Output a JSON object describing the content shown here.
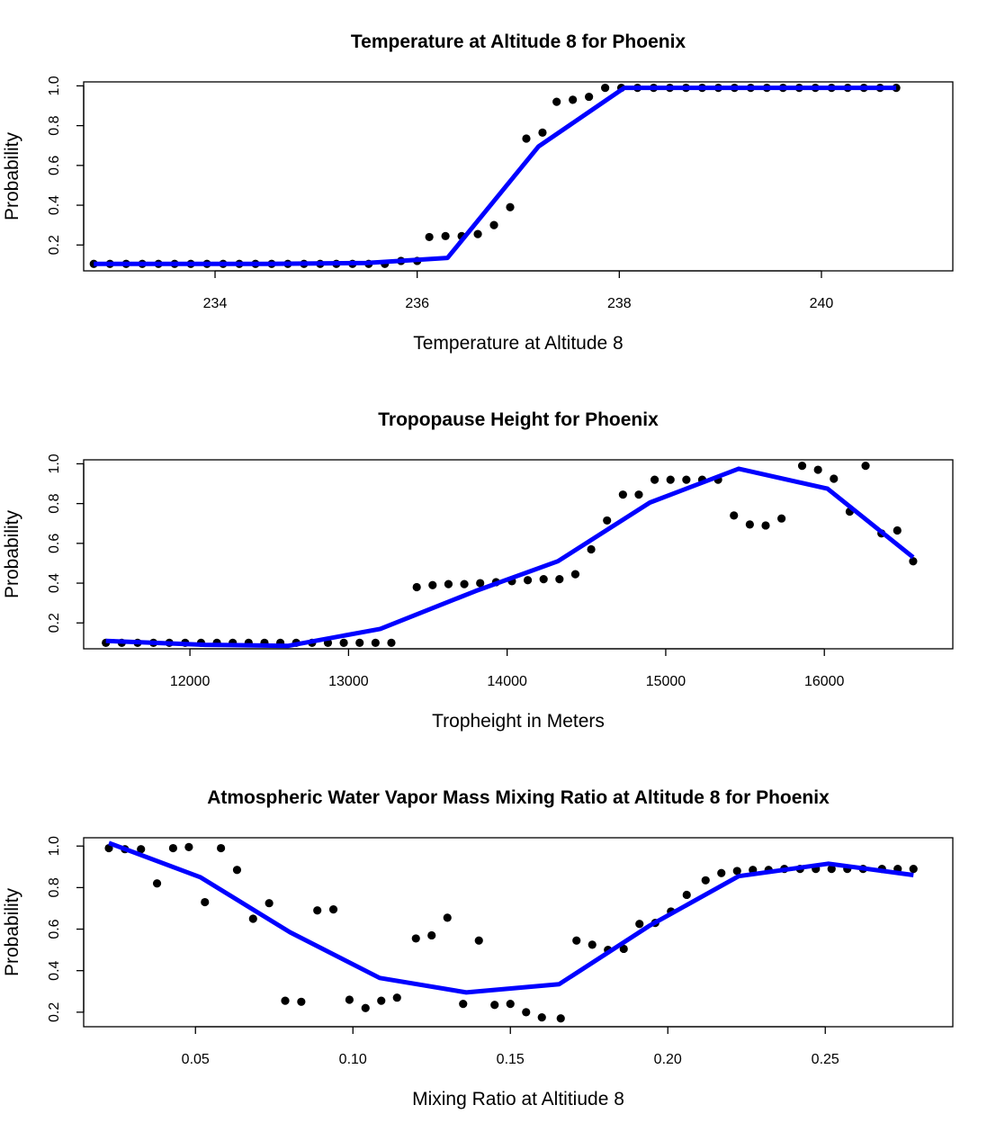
{
  "chart_data": [
    {
      "type": "scatter",
      "title": "Temperature at Altitude 8 for Phoenix",
      "xlabel": "Temperature at Altitude 8",
      "ylabel": "Probability",
      "xlim": [
        232.7,
        241.3
      ],
      "ylim": [
        0.07,
        1.02
      ],
      "xticks": [
        234,
        236,
        238,
        240
      ],
      "xtick_labels": [
        "234",
        "236",
        "238",
        "240"
      ],
      "yticks": [
        0.2,
        0.4,
        0.6,
        0.8,
        1.0
      ],
      "ytick_labels": [
        "0.2",
        "0.4",
        "0.6",
        "0.8",
        "1.0"
      ],
      "line_color": "#0000ff",
      "point_color": "#000000",
      "points": {
        "x": [
          232.8,
          232.96,
          233.12,
          233.28,
          233.44,
          233.6,
          233.76,
          233.92,
          234.08,
          234.24,
          234.4,
          234.56,
          234.72,
          234.88,
          235.04,
          235.2,
          235.36,
          235.52,
          235.68,
          235.84,
          236.0,
          236.12,
          236.28,
          236.44,
          236.6,
          236.76,
          236.92,
          237.08,
          237.24,
          237.38,
          237.54,
          237.7,
          237.86,
          238.02,
          238.18,
          238.34,
          238.5,
          238.66,
          238.82,
          238.98,
          239.14,
          239.3,
          239.46,
          239.62,
          239.78,
          239.94,
          240.1,
          240.26,
          240.42,
          240.58,
          240.74
        ],
        "y": [
          0.105,
          0.105,
          0.105,
          0.105,
          0.105,
          0.105,
          0.105,
          0.105,
          0.105,
          0.105,
          0.105,
          0.105,
          0.105,
          0.105,
          0.105,
          0.105,
          0.105,
          0.105,
          0.105,
          0.12,
          0.12,
          0.24,
          0.245,
          0.245,
          0.255,
          0.3,
          0.39,
          0.735,
          0.765,
          0.92,
          0.93,
          0.945,
          0.99,
          0.99,
          0.99,
          0.99,
          0.99,
          0.99,
          0.99,
          0.99,
          0.99,
          0.99,
          0.99,
          0.99,
          0.99,
          0.99,
          0.99,
          0.99,
          0.99,
          0.99,
          0.99
        ]
      },
      "line": {
        "x": [
          232.8,
          233.5,
          234.5,
          235.5,
          236.3,
          237.2,
          238.05,
          239.0,
          240.0,
          240.74
        ],
        "y": [
          0.105,
          0.105,
          0.105,
          0.11,
          0.135,
          0.695,
          0.99,
          0.99,
          0.99,
          0.99
        ]
      }
    },
    {
      "type": "scatter",
      "title": "Tropopause Height for Phoenix",
      "xlabel": "Tropheight in Meters",
      "ylabel": "Probability",
      "xlim": [
        11330,
        16810
      ],
      "ylim": [
        0.07,
        1.02
      ],
      "xticks": [
        12000,
        13000,
        14000,
        15000,
        16000
      ],
      "xtick_labels": [
        "12000",
        "13000",
        "14000",
        "15000",
        "16000"
      ],
      "yticks": [
        0.2,
        0.4,
        0.6,
        0.8,
        1.0
      ],
      "ytick_labels": [
        "0.2",
        "0.4",
        "0.6",
        "0.8",
        "1.0"
      ],
      "line_color": "#0000ff",
      "point_color": "#000000",
      "points": {
        "x": [
          11470,
          11570,
          11670,
          11770,
          11870,
          11970,
          12070,
          12170,
          12270,
          12370,
          12470,
          12570,
          12670,
          12770,
          12870,
          12970,
          13070,
          13170,
          13270,
          13430,
          13530,
          13630,
          13730,
          13830,
          13930,
          14030,
          14130,
          14230,
          14330,
          14430,
          14530,
          14630,
          14730,
          14830,
          14930,
          15030,
          15130,
          15230,
          15330,
          15430,
          15530,
          15630,
          15730,
          15860,
          15960,
          16060,
          16160,
          16260,
          16360,
          16460,
          16560
        ],
        "y": [
          0.1,
          0.1,
          0.1,
          0.1,
          0.1,
          0.1,
          0.1,
          0.1,
          0.1,
          0.1,
          0.1,
          0.1,
          0.1,
          0.1,
          0.1,
          0.1,
          0.1,
          0.1,
          0.1,
          0.38,
          0.39,
          0.395,
          0.395,
          0.4,
          0.405,
          0.41,
          0.415,
          0.42,
          0.42,
          0.445,
          0.57,
          0.715,
          0.845,
          0.845,
          0.92,
          0.92,
          0.92,
          0.92,
          0.92,
          0.74,
          0.695,
          0.69,
          0.725,
          0.99,
          0.97,
          0.925,
          0.76,
          0.99,
          0.65,
          0.665,
          0.51
        ]
      },
      "line": {
        "x": [
          11470,
          12100,
          12620,
          13200,
          13800,
          14320,
          14900,
          15460,
          16020,
          16560
        ],
        "y": [
          0.11,
          0.09,
          0.085,
          0.17,
          0.36,
          0.51,
          0.805,
          0.975,
          0.875,
          0.53
        ]
      }
    },
    {
      "type": "scatter",
      "title": "Atmospheric Water Vapor Mass Mixing Ratio at Altitude 8 for Phoenix",
      "xlabel": "Mixing Ratio at Altitiude 8",
      "ylabel": "Probability",
      "xlim": [
        0.0145,
        0.2905
      ],
      "ylim": [
        0.13,
        1.04
      ],
      "xticks": [
        0.05,
        0.1,
        0.15,
        0.2,
        0.25
      ],
      "xtick_labels": [
        "0.05",
        "0.10",
        "0.15",
        "0.20",
        "0.25"
      ],
      "yticks": [
        0.2,
        0.4,
        0.6,
        0.8,
        1.0
      ],
      "ytick_labels": [
        "0.2",
        "0.4",
        "0.6",
        "0.8",
        "1.0"
      ],
      "line_color": "#0000ff",
      "point_color": "#000000",
      "points": {
        "x": [
          0.0225,
          0.0276,
          0.0327,
          0.0378,
          0.0429,
          0.0479,
          0.053,
          0.0581,
          0.0632,
          0.0683,
          0.0734,
          0.0785,
          0.0836,
          0.0887,
          0.0938,
          0.0989,
          0.104,
          0.109,
          0.114,
          0.12,
          0.125,
          0.13,
          0.135,
          0.14,
          0.145,
          0.15,
          0.155,
          0.16,
          0.166,
          0.171,
          0.176,
          0.181,
          0.186,
          0.191,
          0.196,
          0.201,
          0.206,
          0.212,
          0.217,
          0.222,
          0.227,
          0.232,
          0.237,
          0.242,
          0.247,
          0.252,
          0.257,
          0.262,
          0.268,
          0.273,
          0.278
        ],
        "y": [
          0.99,
          0.985,
          0.985,
          0.82,
          0.99,
          0.995,
          0.73,
          0.99,
          0.885,
          0.65,
          0.725,
          0.255,
          0.25,
          0.69,
          0.695,
          0.26,
          0.22,
          0.255,
          0.27,
          0.555,
          0.57,
          0.655,
          0.24,
          0.545,
          0.235,
          0.24,
          0.2,
          0.175,
          0.17,
          0.545,
          0.525,
          0.5,
          0.505,
          0.625,
          0.63,
          0.685,
          0.765,
          0.835,
          0.87,
          0.88,
          0.885,
          0.885,
          0.89,
          0.89,
          0.89,
          0.89,
          0.89,
          0.89,
          0.89,
          0.89,
          0.89
        ]
      },
      "line": {
        "x": [
          0.0225,
          0.0515,
          0.08,
          0.1085,
          0.136,
          0.1655,
          0.194,
          0.2225,
          0.251,
          0.278
        ],
        "y": [
          1.015,
          0.85,
          0.585,
          0.365,
          0.295,
          0.335,
          0.615,
          0.855,
          0.915,
          0.86
        ]
      }
    }
  ]
}
